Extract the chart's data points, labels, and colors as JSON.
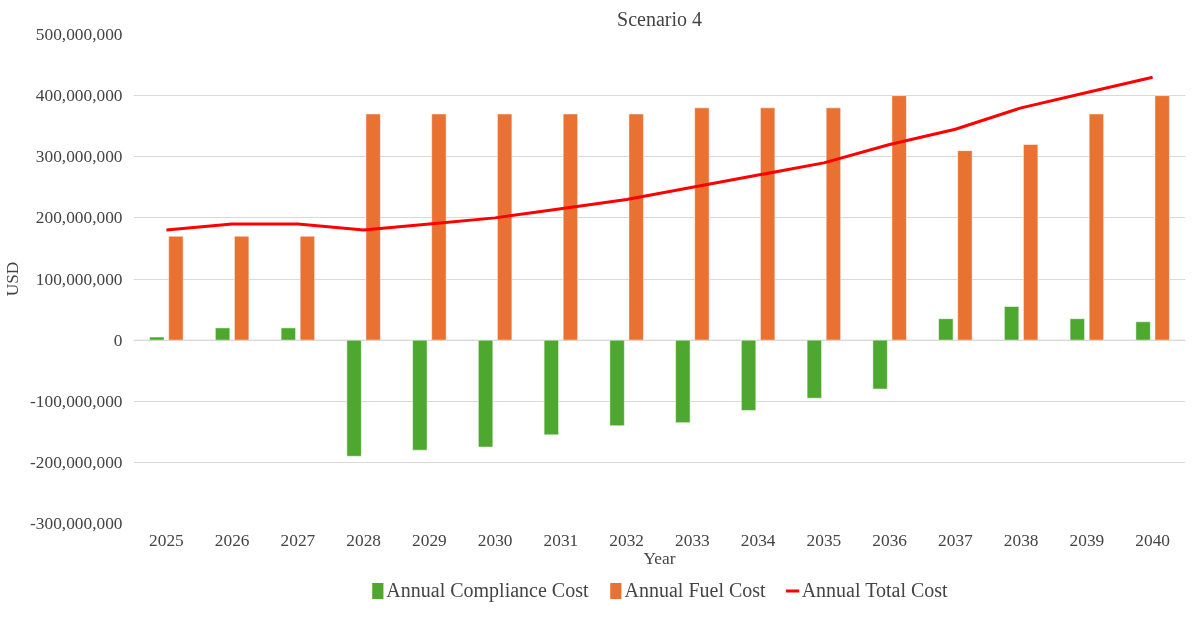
{
  "chart_data": {
    "type": "bar",
    "title": "Scenario 4",
    "xlabel": "Year",
    "ylabel": "USD",
    "categories": [
      "2025",
      "2026",
      "2027",
      "2028",
      "2029",
      "2030",
      "2031",
      "2032",
      "2033",
      "2034",
      "2035",
      "2036",
      "2037",
      "2038",
      "2039",
      "2040"
    ],
    "series": [
      {
        "name": "Annual Compliance Cost",
        "color": "#4ea72e",
        "values": [
          5000000,
          20000000,
          20000000,
          -190000000,
          -180000000,
          -175000000,
          -155000000,
          -140000000,
          -135000000,
          -115000000,
          -95000000,
          -80000000,
          35000000,
          55000000,
          35000000,
          30000000
        ]
      },
      {
        "name": "Annual Fuel Cost",
        "color": "#e97132",
        "values": [
          170000000,
          170000000,
          170000000,
          370000000,
          370000000,
          370000000,
          370000000,
          370000000,
          380000000,
          380000000,
          380000000,
          400000000,
          310000000,
          320000000,
          370000000,
          400000000
        ]
      },
      {
        "name": "Annual Total Cost",
        "type": "line",
        "color": "#ff0000",
        "values": [
          180000000,
          190000000,
          190000000,
          180000000,
          190000000,
          200000000,
          215000000,
          230000000,
          250000000,
          270000000,
          290000000,
          320000000,
          345000000,
          380000000,
          405000000,
          430000000
        ]
      }
    ],
    "ylim": [
      -300000000,
      500000000
    ],
    "yticks": [
      {
        "value": -300000000,
        "label": "-300,000,000"
      },
      {
        "value": -200000000,
        "label": "-200,000,000"
      },
      {
        "value": -100000000,
        "label": "-100,000,000"
      },
      0,
      {
        "value": 100000000,
        "label": "100,000,000"
      },
      {
        "value": 200000000,
        "label": "200,000,000"
      },
      {
        "value": 300000000,
        "label": "300,000,000"
      },
      {
        "value": 400000000,
        "label": "400,000,000"
      },
      {
        "value": 500000000,
        "label": "500,000,000"
      }
    ],
    "grid": "y",
    "legend": "bottom"
  }
}
